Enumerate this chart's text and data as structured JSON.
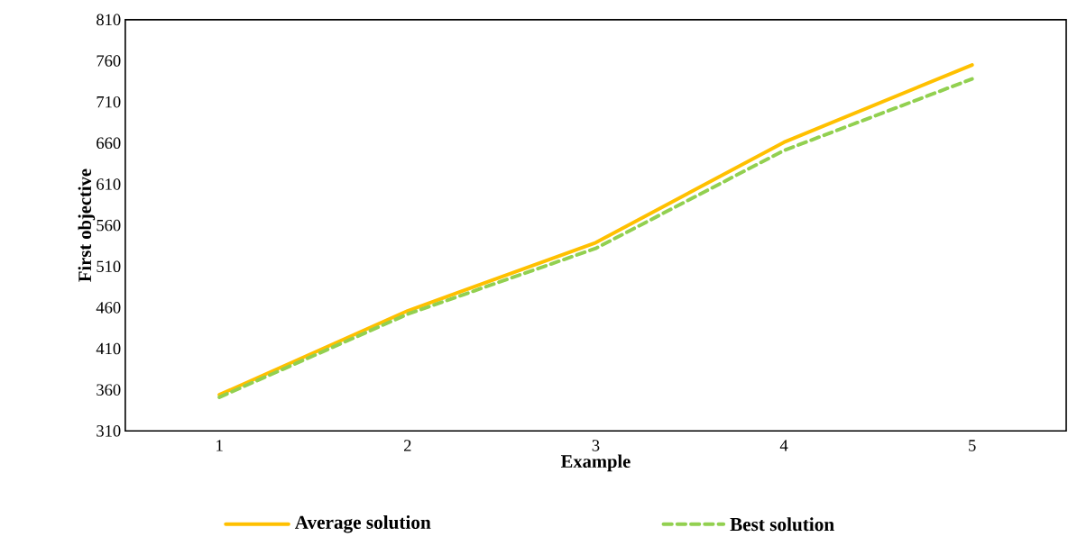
{
  "chart_data": {
    "type": "line",
    "xlabel": "Example",
    "ylabel": "First objective",
    "categories": [
      "1",
      "2",
      "3",
      "4",
      "5"
    ],
    "series": [
      {
        "name": "Average solution",
        "color": "#ffc000",
        "line_style": "solid",
        "values": [
          354,
          456,
          539,
          661,
          755
        ]
      },
      {
        "name": "Best solution",
        "color": "#92d050",
        "line_style": "dashed",
        "values": [
          351,
          452,
          532,
          651,
          738
        ]
      }
    ],
    "ylim": [
      310,
      810
    ],
    "yticks": [
      310,
      360,
      410,
      460,
      510,
      560,
      610,
      660,
      710,
      760,
      810
    ],
    "legend": "bottom",
    "marker": "none"
  }
}
